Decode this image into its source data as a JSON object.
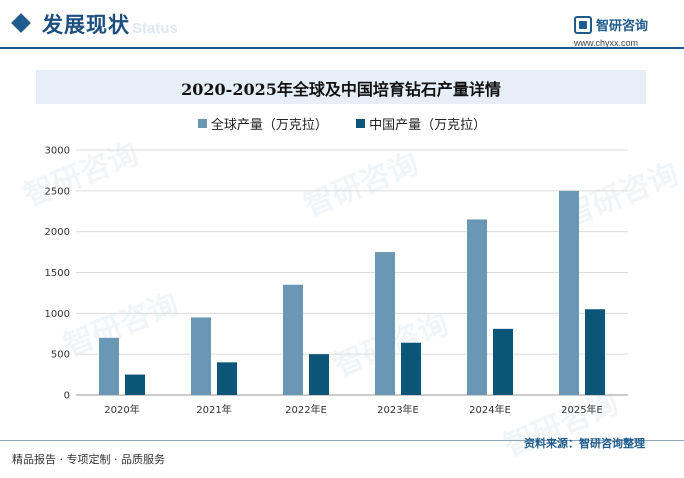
{
  "header": {
    "section_title": "发展现状",
    "section_sub": "Status",
    "logo_name": "智研咨询",
    "logo_url": "www.chyxx.com"
  },
  "watermark_text": "智研咨询",
  "footer": {
    "left": "精品报告 · 专项定制 · 品质服务",
    "source": "资料来源：智研咨询整理"
  },
  "colors": {
    "global": "#6a98b4",
    "china": "#0b5578",
    "accent": "#1f5b8c"
  },
  "chart_data": {
    "type": "bar",
    "title": "2020-2025年全球及中国培育钻石产量详情",
    "categories": [
      "2020年",
      "2021年",
      "2022年E",
      "2023年E",
      "2024年E",
      "2025年E"
    ],
    "series": [
      {
        "name": "全球产量（万克拉）",
        "values": [
          700,
          950,
          1350,
          1750,
          2150,
          2500
        ]
      },
      {
        "name": "中国产量（万克拉）",
        "values": [
          250,
          400,
          500,
          640,
          810,
          1050
        ]
      }
    ],
    "xlabel": "",
    "ylabel": "",
    "ylim": [
      0,
      3000
    ],
    "yticks": [
      0,
      500,
      1000,
      1500,
      2000,
      2500,
      3000
    ],
    "grid": true,
    "legend": "top-center"
  }
}
